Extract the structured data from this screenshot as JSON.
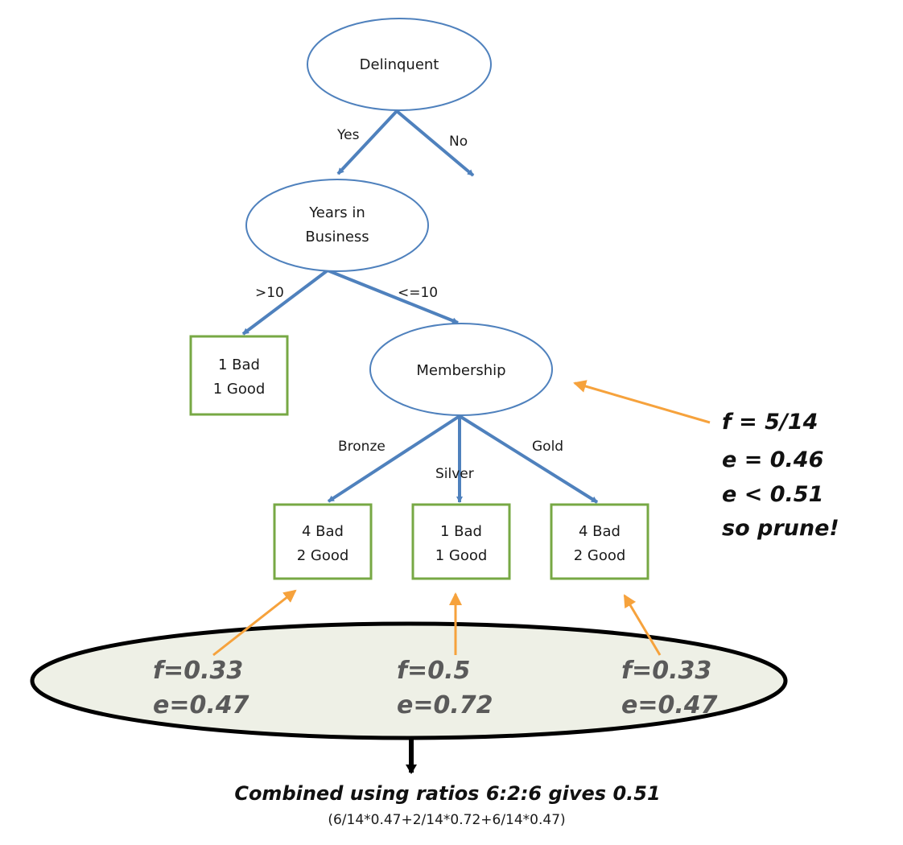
{
  "colors": {
    "node_stroke": "#4f81bd",
    "leaf_stroke": "#77a844",
    "edge": "#4f81bd",
    "annotation_arrow": "#f6a23c",
    "summary_fill": "#eef0e6",
    "summary_stroke": "#000000",
    "stat_text": "#5a5a5a",
    "down_arrow": "#000000"
  },
  "nodes": {
    "delinquent": "Delinquent",
    "years_line1": "Years in",
    "years_line2": "Business",
    "membership": "Membership"
  },
  "edges": {
    "yes": "Yes",
    "no": "No",
    "gt10": ">10",
    "le10": "<=10",
    "bronze": "Bronze",
    "silver": "Silver",
    "gold": "Gold"
  },
  "leaves": {
    "years_gt10": {
      "line1": "1 Bad",
      "line2": "1 Good"
    },
    "bronze": {
      "line1": "4 Bad",
      "line2": "2 Good"
    },
    "silver": {
      "line1": "1 Bad",
      "line2": "1 Good"
    },
    "gold": {
      "line1": "4 Bad",
      "line2": "2 Good"
    }
  },
  "membership_annotation": {
    "line1": "f = 5/14",
    "line2": "e = 0.46",
    "line3": "e < 0.51",
    "line4": "so prune!"
  },
  "leaf_stats": {
    "bronze": {
      "f": "f=0.33",
      "e": "e=0.47"
    },
    "silver": {
      "f": "f=0.5",
      "e": "e=0.72"
    },
    "gold": {
      "f": "f=0.33",
      "e": "e=0.47"
    }
  },
  "summary": {
    "combined": "Combined using ratios 6:2:6 gives 0.51",
    "formula": "(6/14*0.47+2/14*0.72+6/14*0.47)"
  }
}
